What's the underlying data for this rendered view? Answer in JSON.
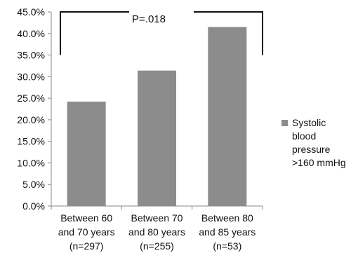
{
  "chart_data": {
    "type": "bar",
    "categories": [
      [
        "Between 60",
        "and 70 years",
        "(n=297)"
      ],
      [
        "Between 70",
        "and 80 years",
        "(n=255)"
      ],
      [
        "Between 80",
        "and 85 years",
        "(n=53)"
      ]
    ],
    "series": [
      {
        "name": "Systolic blood pressure >160 mmHg",
        "name_lines": [
          "Systolic",
          "blood",
          "pressure",
          ">160 mmHg"
        ],
        "values": [
          24.2,
          31.4,
          41.5
        ],
        "color": "#8c8c8c"
      }
    ],
    "y_ticks": [
      "0.0%",
      "5.0%",
      "10.0%",
      "15.0%",
      "20.0%",
      "25.0%",
      "30.0%",
      "35.0%",
      "40.0%",
      "45.0%"
    ],
    "ylim": [
      0,
      45
    ],
    "annotation": {
      "text": "P=.018",
      "from_category": 0,
      "to_category": 2
    },
    "legend_position": "right",
    "grid": false
  }
}
